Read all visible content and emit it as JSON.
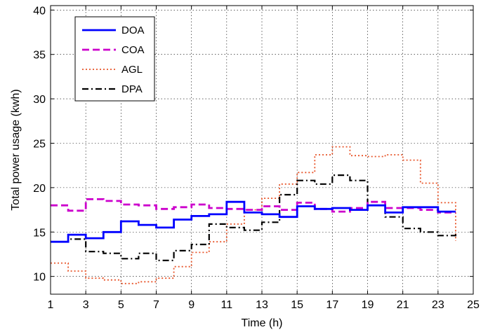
{
  "chart_data": {
    "type": "line",
    "step": true,
    "title": "",
    "xlabel": "Time (h)",
    "ylabel": "Total power usage (kwh)",
    "xlim": [
      1,
      25
    ],
    "ylim": [
      8,
      40.5
    ],
    "xticks": [
      1,
      3,
      5,
      7,
      9,
      11,
      13,
      15,
      17,
      19,
      21,
      23,
      25
    ],
    "yticks": [
      10,
      15,
      20,
      25,
      30,
      35,
      40
    ],
    "grid": true,
    "legend_position": "top-left",
    "x": [
      1,
      2,
      3,
      4,
      5,
      6,
      7,
      8,
      9,
      10,
      11,
      12,
      13,
      14,
      15,
      16,
      17,
      18,
      19,
      20,
      21,
      22,
      23,
      24
    ],
    "series": [
      {
        "name": "DOA",
        "color": "#0000ff",
        "style": "solid",
        "values": [
          13.9,
          14.7,
          14.3,
          15.0,
          16.2,
          15.8,
          15.5,
          16.4,
          16.8,
          17.0,
          18.4,
          17.2,
          17.0,
          16.7,
          17.9,
          17.6,
          17.7,
          17.5,
          18.0,
          17.2,
          17.8,
          17.8,
          17.3,
          17.3
        ]
      },
      {
        "name": "COA",
        "color": "#cc00cc",
        "style": "dashed",
        "values": [
          18.0,
          17.4,
          18.7,
          18.5,
          18.1,
          18.0,
          17.6,
          17.8,
          18.1,
          17.7,
          17.6,
          17.5,
          17.9,
          17.5,
          18.3,
          17.6,
          17.3,
          17.7,
          18.4,
          17.7,
          17.7,
          17.5,
          17.2,
          17.2
        ]
      },
      {
        "name": "AGL",
        "color": "#e8552a",
        "style": "dotted",
        "values": [
          11.5,
          10.6,
          9.8,
          9.6,
          9.2,
          9.4,
          9.8,
          11.1,
          12.7,
          13.9,
          15.9,
          17.5,
          18.8,
          20.4,
          21.7,
          23.7,
          24.6,
          23.6,
          23.5,
          23.7,
          23.1,
          20.5,
          18.3,
          14.0
        ]
      },
      {
        "name": "DPA",
        "color": "#000000",
        "style": "dashdot",
        "values": [
          13.9,
          14.2,
          12.8,
          12.6,
          12.0,
          12.6,
          11.8,
          12.9,
          13.6,
          15.9,
          15.5,
          15.2,
          16.1,
          19.2,
          20.8,
          20.4,
          21.4,
          20.8,
          18.0,
          16.7,
          15.4,
          15.0,
          14.6,
          14.9
        ]
      }
    ]
  }
}
